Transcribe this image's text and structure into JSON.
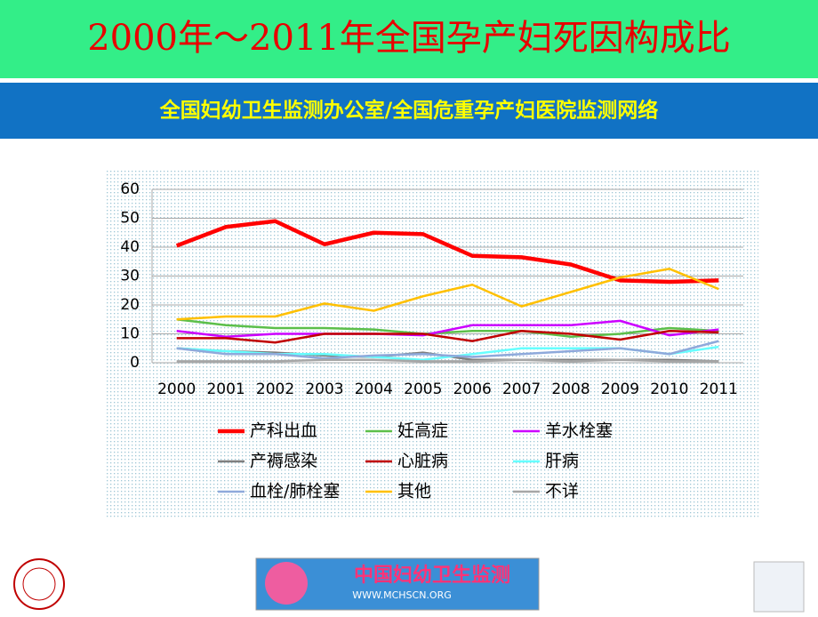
{
  "header": {
    "title": "2000年～2011年全国孕产妇死因构成比",
    "subtitle": "全国妇幼卫生监测办公室/全国危重孕产妇医院监测网络"
  },
  "footer": {
    "logo_text": "中国妇幼卫生监测",
    "logo_url": "WWW.MCHSCN.ORG"
  },
  "chart_data": {
    "type": "line",
    "categories": [
      "2000",
      "2001",
      "2002",
      "2003",
      "2004",
      "2005",
      "2006",
      "2007",
      "2008",
      "2009",
      "2010",
      "2011"
    ],
    "ylim": [
      0,
      60
    ],
    "yticks": [
      0,
      10,
      20,
      30,
      40,
      50,
      60
    ],
    "grid": true,
    "legend": "bottom",
    "series": [
      {
        "name": "产科出血",
        "color": "#ff0000",
        "values": [
          40.5,
          47,
          49,
          41,
          45,
          44.5,
          37,
          36.5,
          34,
          28.5,
          28,
          28.5
        ]
      },
      {
        "name": "妊高症",
        "color": "#5cbf4a",
        "values": [
          15,
          13,
          12,
          12,
          11.5,
          10,
          11,
          11,
          9,
          10,
          12,
          11
        ]
      },
      {
        "name": "羊水栓塞",
        "color": "#cc00ff",
        "values": [
          11,
          9,
          10,
          10,
          10,
          9.5,
          13,
          13,
          13,
          14.5,
          9.5,
          11.5
        ]
      },
      {
        "name": "产褥感染",
        "color": "#7f7f7f",
        "values": [
          5,
          4,
          3.5,
          2.5,
          2,
          3.5,
          1,
          1,
          1,
          1,
          1,
          0.5
        ]
      },
      {
        "name": "心脏病",
        "color": "#c00000",
        "values": [
          8.5,
          8.5,
          7,
          10,
          10,
          10,
          7.5,
          11,
          10,
          8,
          11,
          10.5
        ]
      },
      {
        "name": "肝病",
        "color": "#66ffff",
        "values": [
          5,
          4,
          3,
          3,
          2,
          1,
          3,
          5,
          5,
          5,
          3,
          5.5
        ]
      },
      {
        "name": "血栓/肺栓塞",
        "color": "#8ea9db",
        "values": [
          5,
          3,
          3,
          1.5,
          2.5,
          3,
          2,
          3,
          4,
          5,
          3,
          7.5
        ]
      },
      {
        "name": "其他",
        "color": "#ffc000",
        "values": [
          15,
          16,
          16,
          20.5,
          18,
          23,
          27,
          19.5,
          24.5,
          29.5,
          32.5,
          25.5
        ]
      },
      {
        "name": "不详",
        "color": "#a6a6a6",
        "values": [
          0.5,
          0.5,
          0.5,
          1,
          1,
          0.5,
          0.5,
          1,
          0.5,
          1,
          0.5,
          0.5
        ]
      }
    ]
  }
}
